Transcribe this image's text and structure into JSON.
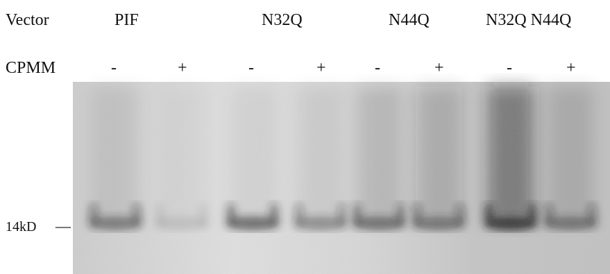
{
  "header": {
    "vector_label": "Vector",
    "constructs": [
      "PIF",
      "N32Q",
      "N44Q",
      "N32Q N44Q"
    ],
    "cpmm_label": "CPMM",
    "cpmm_signs": [
      "-",
      "+",
      "-",
      "+",
      "-",
      "+",
      "-",
      "+"
    ]
  },
  "marker": {
    "label": "14kD",
    "tick": "—"
  },
  "gel": {
    "lanes": [
      {
        "sign": "-",
        "band_intensity": 0.55,
        "smear_intensity": 0.15
      },
      {
        "sign": "+",
        "band_intensity": 0.12,
        "smear_intensity": 0.05
      },
      {
        "sign": "-",
        "band_intensity": 0.65,
        "smear_intensity": 0.1
      },
      {
        "sign": "+",
        "band_intensity": 0.45,
        "smear_intensity": 0.12
      },
      {
        "sign": "-",
        "band_intensity": 0.6,
        "smear_intensity": 0.25
      },
      {
        "sign": "+",
        "band_intensity": 0.55,
        "smear_intensity": 0.35
      },
      {
        "sign": "-",
        "band_intensity": 0.95,
        "smear_intensity": 0.85
      },
      {
        "sign": "+",
        "band_intensity": 0.55,
        "smear_intensity": 0.25
      }
    ],
    "colors": {
      "background": "#c9c9c9",
      "band": "#1e1e1e"
    }
  }
}
